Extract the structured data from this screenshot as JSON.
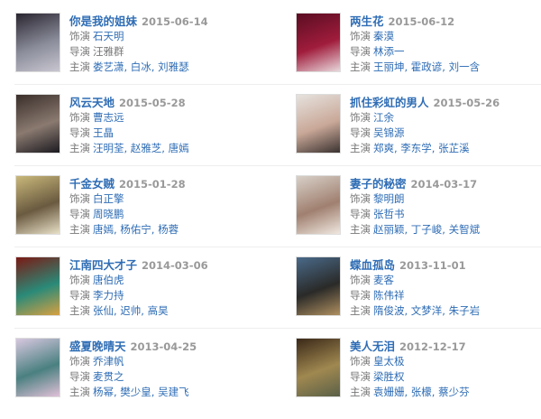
{
  "labels": {
    "role": "饰演",
    "director": "导演",
    "starring": "主演"
  },
  "items": [
    {
      "title": "你是我的姐妹",
      "date": "2015-06-14",
      "role": "石天明",
      "director": "汪雅群",
      "director_link": false,
      "starring": "娄艺潇, 白冰, 刘雅瑟",
      "poster": [
        "#2a2530",
        "#8a8c9a",
        "#c8c6d0"
      ]
    },
    {
      "title": "两生花",
      "date": "2015-06-12",
      "role": "秦漠",
      "director": "林添一",
      "director_link": true,
      "starring": "王丽坤, 霍政谚, 刘一含",
      "poster": [
        "#5a0d22",
        "#a01c3c",
        "#e8d8dc"
      ]
    },
    {
      "title": "风云天地",
      "date": "2015-05-28",
      "role": "曹志远",
      "director": "王晶",
      "director_link": true,
      "starring": "汪明荃, 赵雅芝, 唐嫣",
      "poster": [
        "#3a2e2a",
        "#8a7a70",
        "#1c1a20"
      ]
    },
    {
      "title": "抓住彩虹的男人",
      "date": "2015-05-26",
      "role": "江余",
      "director": "吴锦源",
      "director_link": true,
      "starring": "郑爽, 李东学, 张芷溪",
      "poster": [
        "#e6e2de",
        "#c9a898",
        "#3a3230"
      ]
    },
    {
      "title": "千金女贼",
      "date": "2015-01-28",
      "role": "白正擎",
      "director": "周晓鹏",
      "director_link": true,
      "starring": "唐嫣, 杨佑宁, 杨蓉",
      "poster": [
        "#c9b87a",
        "#6a5a40",
        "#e8e0c8"
      ]
    },
    {
      "title": "妻子的秘密",
      "date": "2014-03-17",
      "role": "黎明朗",
      "director": "张哲书",
      "director_link": true,
      "starring": "赵丽颖, 丁子峻, 关智斌",
      "poster": [
        "#d8d0c8",
        "#a08070",
        "#f0e8e0"
      ]
    },
    {
      "title": "江南四大才子",
      "date": "2014-03-06",
      "role": "唐伯虎",
      "director": "李力持",
      "director_link": true,
      "starring": "张仙, 迟帅, 高昊",
      "poster": [
        "#7a1a14",
        "#2a8a78",
        "#d8a040"
      ]
    },
    {
      "title": "蝶血孤岛",
      "date": "2013-11-01",
      "role": "麦客",
      "director": "陈伟祥",
      "director_link": true,
      "starring": "隋俊波, 文梦洋, 朱子岩",
      "poster": [
        "#4a6a8a",
        "#2a2a28",
        "#b09060"
      ]
    },
    {
      "title": "盛夏晚晴天",
      "date": "2013-04-25",
      "role": "乔津帆",
      "director": "麦贯之",
      "director_link": true,
      "starring": "杨幂, 樊少皇, 吴建飞",
      "poster": [
        "#d8c8e0",
        "#4a8080",
        "#e0c0d8"
      ]
    },
    {
      "title": "美人无泪",
      "date": "2012-12-17",
      "role": "皇太极",
      "director": "梁胜权",
      "director_link": true,
      "starring": "袁姗姗, 张檬, 蔡少芬",
      "poster": [
        "#3a2818",
        "#a08850",
        "#5a6048"
      ]
    }
  ]
}
